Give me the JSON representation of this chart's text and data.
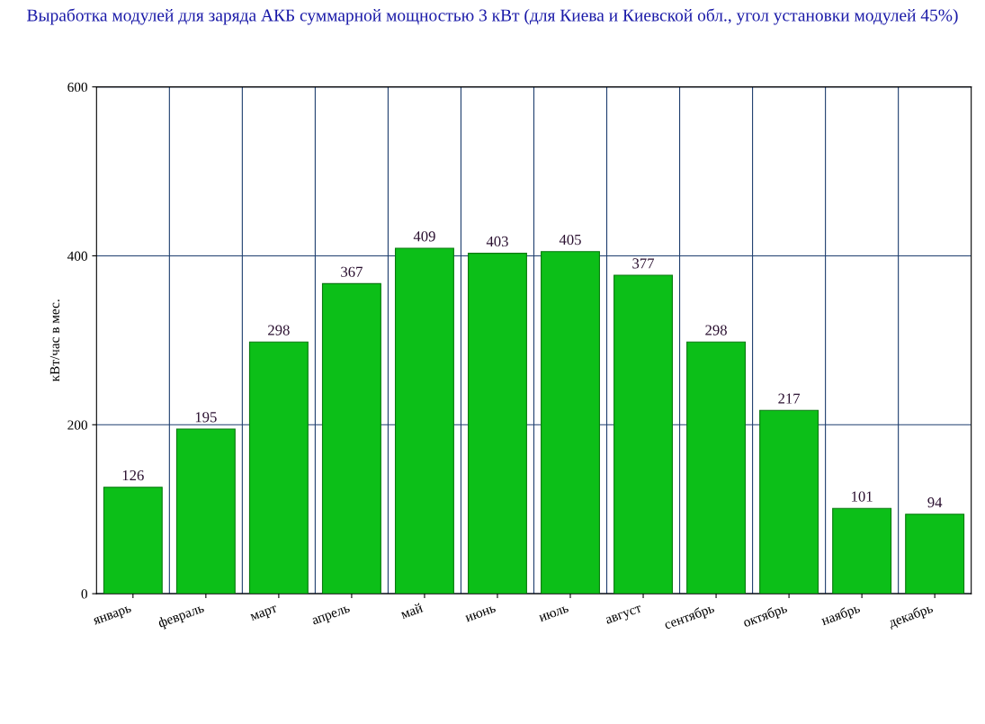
{
  "chart_data": {
    "type": "bar",
    "title": "Выработка модулей для заряда АКБ суммарной мощностью 3 кВт (для Киева и Киевской обл., угол установки модулей 45%)",
    "ylabel": "кВт/час в мес.",
    "categories": [
      "январь",
      "февраль",
      "март",
      "апрель",
      "май",
      "июнь",
      "июль",
      "август",
      "сентябрь",
      "октябрь",
      "наябрь",
      "декабрь"
    ],
    "values": [
      126,
      195,
      298,
      367,
      409,
      403,
      405,
      377,
      298,
      217,
      101,
      94
    ],
    "color": "#0cbf18",
    "ylim": [
      0,
      600
    ],
    "yticks": [
      0,
      200,
      400,
      600
    ],
    "grid": true,
    "data_labels": true
  }
}
